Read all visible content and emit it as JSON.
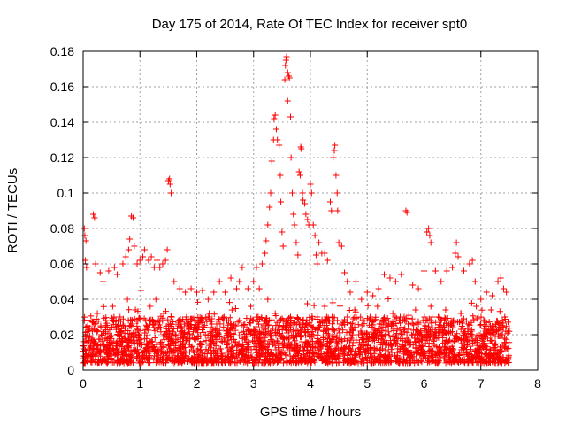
{
  "chart_data": {
    "type": "scatter",
    "title": "Day 175 of 2014, Rate Of TEC Index for receiver spt0",
    "xlabel": "GPS time / hours",
    "ylabel": "ROTI / TECUs",
    "xlim": [
      0,
      8
    ],
    "ylim": [
      0,
      0.18
    ],
    "xticks": [
      0,
      1,
      2,
      3,
      4,
      5,
      6,
      7,
      8
    ],
    "xtick_labels": [
      "0",
      "1",
      "2",
      "3",
      "4",
      "5",
      "6",
      "7",
      "8"
    ],
    "yticks": [
      0,
      0.02,
      0.04,
      0.06,
      0.08,
      0.1,
      0.12,
      0.14,
      0.16,
      0.18
    ],
    "ytick_labels": [
      "0",
      "0.02",
      "0.04",
      "0.06",
      "0.08",
      "0.1",
      "0.12",
      "0.14",
      "0.16",
      "0.18"
    ],
    "grid": true,
    "legend": "none",
    "marker": "+",
    "marker_color": "#ff0000",
    "series": [
      {
        "name": "ROTI",
        "points": [
          [
            0.02,
            0.08
          ],
          [
            0.03,
            0.076
          ],
          [
            0.05,
            0.073
          ],
          [
            0.04,
            0.062
          ],
          [
            0.06,
            0.058
          ],
          [
            0.18,
            0.088
          ],
          [
            0.2,
            0.086
          ],
          [
            0.22,
            0.06
          ],
          [
            0.3,
            0.055
          ],
          [
            0.35,
            0.05
          ],
          [
            0.45,
            0.056
          ],
          [
            0.55,
            0.058
          ],
          [
            0.6,
            0.054
          ],
          [
            0.7,
            0.06
          ],
          [
            0.75,
            0.064
          ],
          [
            0.8,
            0.068
          ],
          [
            0.85,
            0.087
          ],
          [
            0.88,
            0.086
          ],
          [
            0.82,
            0.074
          ],
          [
            0.9,
            0.07
          ],
          [
            0.95,
            0.06
          ],
          [
            1.0,
            0.062
          ],
          [
            1.05,
            0.064
          ],
          [
            1.08,
            0.068
          ],
          [
            1.15,
            0.062
          ],
          [
            1.2,
            0.064
          ],
          [
            1.25,
            0.058
          ],
          [
            1.3,
            0.062
          ],
          [
            1.35,
            0.058
          ],
          [
            1.4,
            0.06
          ],
          [
            1.45,
            0.062
          ],
          [
            1.5,
            0.107
          ],
          [
            1.52,
            0.108
          ],
          [
            1.53,
            0.105
          ],
          [
            1.55,
            0.1
          ],
          [
            1.48,
            0.068
          ],
          [
            1.6,
            0.05
          ],
          [
            1.7,
            0.046
          ],
          [
            1.8,
            0.044
          ],
          [
            1.9,
            0.046
          ],
          [
            2.0,
            0.044
          ],
          [
            2.1,
            0.045
          ],
          [
            2.2,
            0.04
          ],
          [
            2.3,
            0.044
          ],
          [
            2.4,
            0.05
          ],
          [
            2.5,
            0.044
          ],
          [
            2.6,
            0.052
          ],
          [
            2.7,
            0.046
          ],
          [
            2.75,
            0.05
          ],
          [
            2.8,
            0.058
          ],
          [
            2.9,
            0.046
          ],
          [
            3.0,
            0.05
          ],
          [
            3.05,
            0.058
          ],
          [
            3.1,
            0.046
          ],
          [
            3.15,
            0.06
          ],
          [
            3.2,
            0.066
          ],
          [
            3.22,
            0.073
          ],
          [
            3.25,
            0.082
          ],
          [
            3.28,
            0.092
          ],
          [
            3.3,
            0.1
          ],
          [
            3.32,
            0.118
          ],
          [
            3.35,
            0.13
          ],
          [
            3.36,
            0.142
          ],
          [
            3.38,
            0.144
          ],
          [
            3.4,
            0.136
          ],
          [
            3.42,
            0.13
          ],
          [
            3.45,
            0.127
          ],
          [
            3.47,
            0.11
          ],
          [
            3.48,
            0.095
          ],
          [
            3.5,
            0.078
          ],
          [
            3.52,
            0.07
          ],
          [
            3.55,
            0.164
          ],
          [
            3.56,
            0.172
          ],
          [
            3.57,
            0.175
          ],
          [
            3.58,
            0.177
          ],
          [
            3.6,
            0.168
          ],
          [
            3.62,
            0.166
          ],
          [
            3.63,
            0.165
          ],
          [
            3.6,
            0.152
          ],
          [
            3.65,
            0.143
          ],
          [
            3.66,
            0.12
          ],
          [
            3.68,
            0.1
          ],
          [
            3.7,
            0.088
          ],
          [
            3.72,
            0.082
          ],
          [
            3.75,
            0.072
          ],
          [
            3.78,
            0.065
          ],
          [
            3.8,
            0.112
          ],
          [
            3.82,
            0.11
          ],
          [
            3.83,
            0.126
          ],
          [
            3.84,
            0.125
          ],
          [
            3.86,
            0.1
          ],
          [
            3.87,
            0.096
          ],
          [
            3.9,
            0.094
          ],
          [
            3.92,
            0.088
          ],
          [
            3.95,
            0.085
          ],
          [
            3.97,
            0.082
          ],
          [
            4.0,
            0.105
          ],
          [
            4.02,
            0.1
          ],
          [
            4.05,
            0.082
          ],
          [
            4.08,
            0.076
          ],
          [
            4.1,
            0.065
          ],
          [
            4.12,
            0.06
          ],
          [
            4.15,
            0.072
          ],
          [
            4.2,
            0.066
          ],
          [
            4.25,
            0.066
          ],
          [
            4.3,
            0.062
          ],
          [
            4.35,
            0.095
          ],
          [
            4.37,
            0.09
          ],
          [
            4.4,
            0.12
          ],
          [
            4.42,
            0.124
          ],
          [
            4.43,
            0.127
          ],
          [
            4.45,
            0.11
          ],
          [
            4.47,
            0.1
          ],
          [
            4.48,
            0.09
          ],
          [
            4.5,
            0.072
          ],
          [
            4.55,
            0.07
          ],
          [
            4.6,
            0.055
          ],
          [
            4.65,
            0.05
          ],
          [
            4.7,
            0.044
          ],
          [
            4.8,
            0.05
          ],
          [
            4.9,
            0.04
          ],
          [
            5.0,
            0.044
          ],
          [
            5.1,
            0.042
          ],
          [
            5.2,
            0.046
          ],
          [
            5.3,
            0.054
          ],
          [
            5.4,
            0.052
          ],
          [
            5.5,
            0.05
          ],
          [
            5.6,
            0.054
          ],
          [
            5.68,
            0.09
          ],
          [
            5.7,
            0.089
          ],
          [
            5.8,
            0.048
          ],
          [
            5.9,
            0.046
          ],
          [
            6.0,
            0.056
          ],
          [
            6.05,
            0.078
          ],
          [
            6.08,
            0.08
          ],
          [
            6.1,
            0.076
          ],
          [
            6.12,
            0.072
          ],
          [
            6.2,
            0.056
          ],
          [
            6.3,
            0.05
          ],
          [
            6.4,
            0.056
          ],
          [
            6.5,
            0.058
          ],
          [
            6.55,
            0.066
          ],
          [
            6.57,
            0.072
          ],
          [
            6.6,
            0.064
          ],
          [
            6.7,
            0.056
          ],
          [
            6.8,
            0.06
          ],
          [
            6.85,
            0.062
          ],
          [
            6.9,
            0.05
          ],
          [
            7.0,
            0.04
          ],
          [
            7.1,
            0.044
          ],
          [
            7.2,
            0.042
          ],
          [
            7.3,
            0.05
          ],
          [
            7.35,
            0.052
          ],
          [
            7.4,
            0.046
          ],
          [
            7.45,
            0.044
          ],
          [
            0.02,
            0.012
          ],
          [
            0.08,
            0.025
          ],
          [
            0.15,
            0.018
          ],
          [
            0.25,
            0.032
          ],
          [
            0.32,
            0.02
          ],
          [
            0.4,
            0.028
          ],
          [
            0.48,
            0.015
          ],
          [
            0.52,
            0.036
          ],
          [
            0.58,
            0.024
          ],
          [
            0.65,
            0.03
          ],
          [
            0.72,
            0.018
          ],
          [
            0.78,
            0.04
          ],
          [
            0.86,
            0.026
          ],
          [
            0.92,
            0.034
          ],
          [
            0.98,
            0.02
          ],
          [
            1.02,
            0.045
          ],
          [
            1.1,
            0.028
          ],
          [
            1.18,
            0.036
          ],
          [
            1.22,
            0.016
          ],
          [
            1.28,
            0.04
          ],
          [
            1.36,
            0.024
          ],
          [
            1.42,
            0.032
          ],
          [
            1.5,
            0.018
          ],
          [
            1.56,
            0.03
          ],
          [
            1.62,
            0.02
          ],
          [
            1.68,
            0.026
          ],
          [
            1.75,
            0.014
          ],
          [
            1.82,
            0.03
          ],
          [
            1.88,
            0.018
          ],
          [
            1.95,
            0.024
          ],
          [
            2.02,
            0.012
          ],
          [
            2.08,
            0.028
          ],
          [
            2.15,
            0.02
          ],
          [
            2.22,
            0.032
          ],
          [
            2.28,
            0.016
          ],
          [
            2.35,
            0.026
          ],
          [
            2.42,
            0.012
          ],
          [
            2.48,
            0.03
          ],
          [
            2.55,
            0.02
          ],
          [
            2.62,
            0.034
          ],
          [
            2.68,
            0.016
          ],
          [
            2.75,
            0.028
          ],
          [
            2.82,
            0.012
          ],
          [
            2.88,
            0.024
          ],
          [
            2.95,
            0.036
          ],
          [
            3.02,
            0.02
          ],
          [
            3.08,
            0.03
          ],
          [
            3.12,
            0.016
          ],
          [
            3.18,
            0.026
          ],
          [
            3.25,
            0.04
          ],
          [
            3.3,
            0.022
          ],
          [
            3.38,
            0.032
          ],
          [
            3.45,
            0.014
          ],
          [
            3.52,
            0.028
          ],
          [
            3.58,
            0.018
          ],
          [
            3.65,
            0.03
          ],
          [
            3.72,
            0.012
          ],
          [
            3.78,
            0.022
          ],
          [
            3.85,
            0.016
          ],
          [
            3.92,
            0.026
          ],
          [
            3.98,
            0.01
          ],
          [
            4.05,
            0.02
          ],
          [
            4.12,
            0.03
          ],
          [
            4.18,
            0.014
          ],
          [
            4.25,
            0.036
          ],
          [
            4.32,
            0.02
          ],
          [
            4.38,
            0.03
          ],
          [
            4.45,
            0.016
          ],
          [
            4.52,
            0.026
          ],
          [
            4.58,
            0.012
          ],
          [
            4.65,
            0.03
          ],
          [
            4.72,
            0.018
          ],
          [
            4.78,
            0.034
          ],
          [
            4.85,
            0.02
          ],
          [
            4.92,
            0.028
          ],
          [
            4.98,
            0.014
          ],
          [
            5.05,
            0.03
          ],
          [
            5.12,
            0.018
          ],
          [
            5.18,
            0.036
          ],
          [
            5.25,
            0.02
          ],
          [
            5.32,
            0.028
          ],
          [
            5.38,
            0.014
          ],
          [
            5.45,
            0.032
          ],
          [
            5.52,
            0.018
          ],
          [
            5.58,
            0.03
          ],
          [
            5.65,
            0.012
          ],
          [
            5.72,
            0.026
          ],
          [
            5.78,
            0.02
          ],
          [
            5.85,
            0.034
          ],
          [
            5.92,
            0.016
          ],
          [
            5.98,
            0.028
          ],
          [
            6.05,
            0.018
          ],
          [
            6.12,
            0.036
          ],
          [
            6.18,
            0.014
          ],
          [
            6.25,
            0.03
          ],
          [
            6.32,
            0.02
          ],
          [
            6.38,
            0.034
          ],
          [
            6.45,
            0.012
          ],
          [
            6.52,
            0.028
          ],
          [
            6.58,
            0.018
          ],
          [
            6.65,
            0.032
          ],
          [
            6.72,
            0.014
          ],
          [
            6.78,
            0.026
          ],
          [
            6.85,
            0.02
          ],
          [
            6.92,
            0.036
          ],
          [
            6.98,
            0.012
          ],
          [
            7.05,
            0.028
          ],
          [
            7.12,
            0.018
          ],
          [
            7.18,
            0.034
          ],
          [
            7.25,
            0.014
          ],
          [
            7.32,
            0.026
          ],
          [
            7.38,
            0.02
          ],
          [
            7.42,
            0.03
          ],
          [
            7.46,
            0.012
          ],
          [
            7.48,
            0.022
          ]
        ],
        "dense_band": {
          "x_range": [
            0,
            7.5
          ],
          "typical_min": 0.004,
          "typical_max": 0.03,
          "point_count": 2600
        }
      }
    ]
  }
}
